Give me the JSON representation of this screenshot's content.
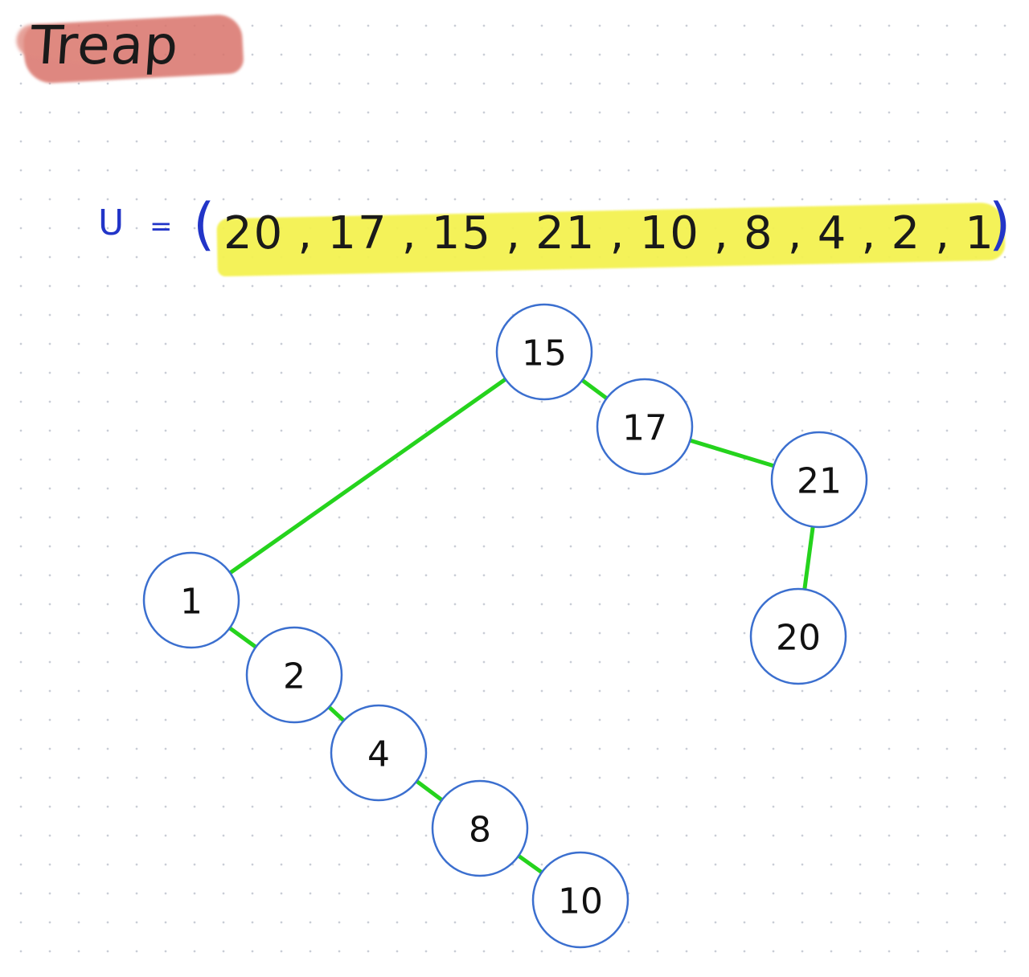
{
  "title": "Treap",
  "set": {
    "label": "U",
    "equals": "=",
    "open": "(",
    "close": ")",
    "values": [
      "20",
      ",",
      "17",
      ",",
      "15",
      ",",
      "21",
      ",",
      "10",
      ",",
      "8",
      ",",
      "4",
      ",",
      "2",
      ",",
      "1"
    ]
  },
  "tree": {
    "nodes": [
      {
        "id": "n15",
        "label": "15"
      },
      {
        "id": "n17",
        "label": "17"
      },
      {
        "id": "n21",
        "label": "21"
      },
      {
        "id": "n20",
        "label": "20"
      },
      {
        "id": "n1",
        "label": "1"
      },
      {
        "id": "n2",
        "label": "2"
      },
      {
        "id": "n4",
        "label": "4"
      },
      {
        "id": "n8",
        "label": "8"
      },
      {
        "id": "n10",
        "label": "10"
      }
    ],
    "edges": [
      [
        "n15",
        "n1"
      ],
      [
        "n15",
        "n17"
      ],
      [
        "n17",
        "n21"
      ],
      [
        "n21",
        "n20"
      ],
      [
        "n1",
        "n2"
      ],
      [
        "n2",
        "n4"
      ],
      [
        "n4",
        "n8"
      ],
      [
        "n8",
        "n10"
      ]
    ]
  },
  "colors": {
    "edge": "#25d31d",
    "node_border": "#3b6fcf",
    "set_ink": "#2235c8",
    "set_highlight": "#f4f251",
    "title_highlight": "#d9736a"
  }
}
